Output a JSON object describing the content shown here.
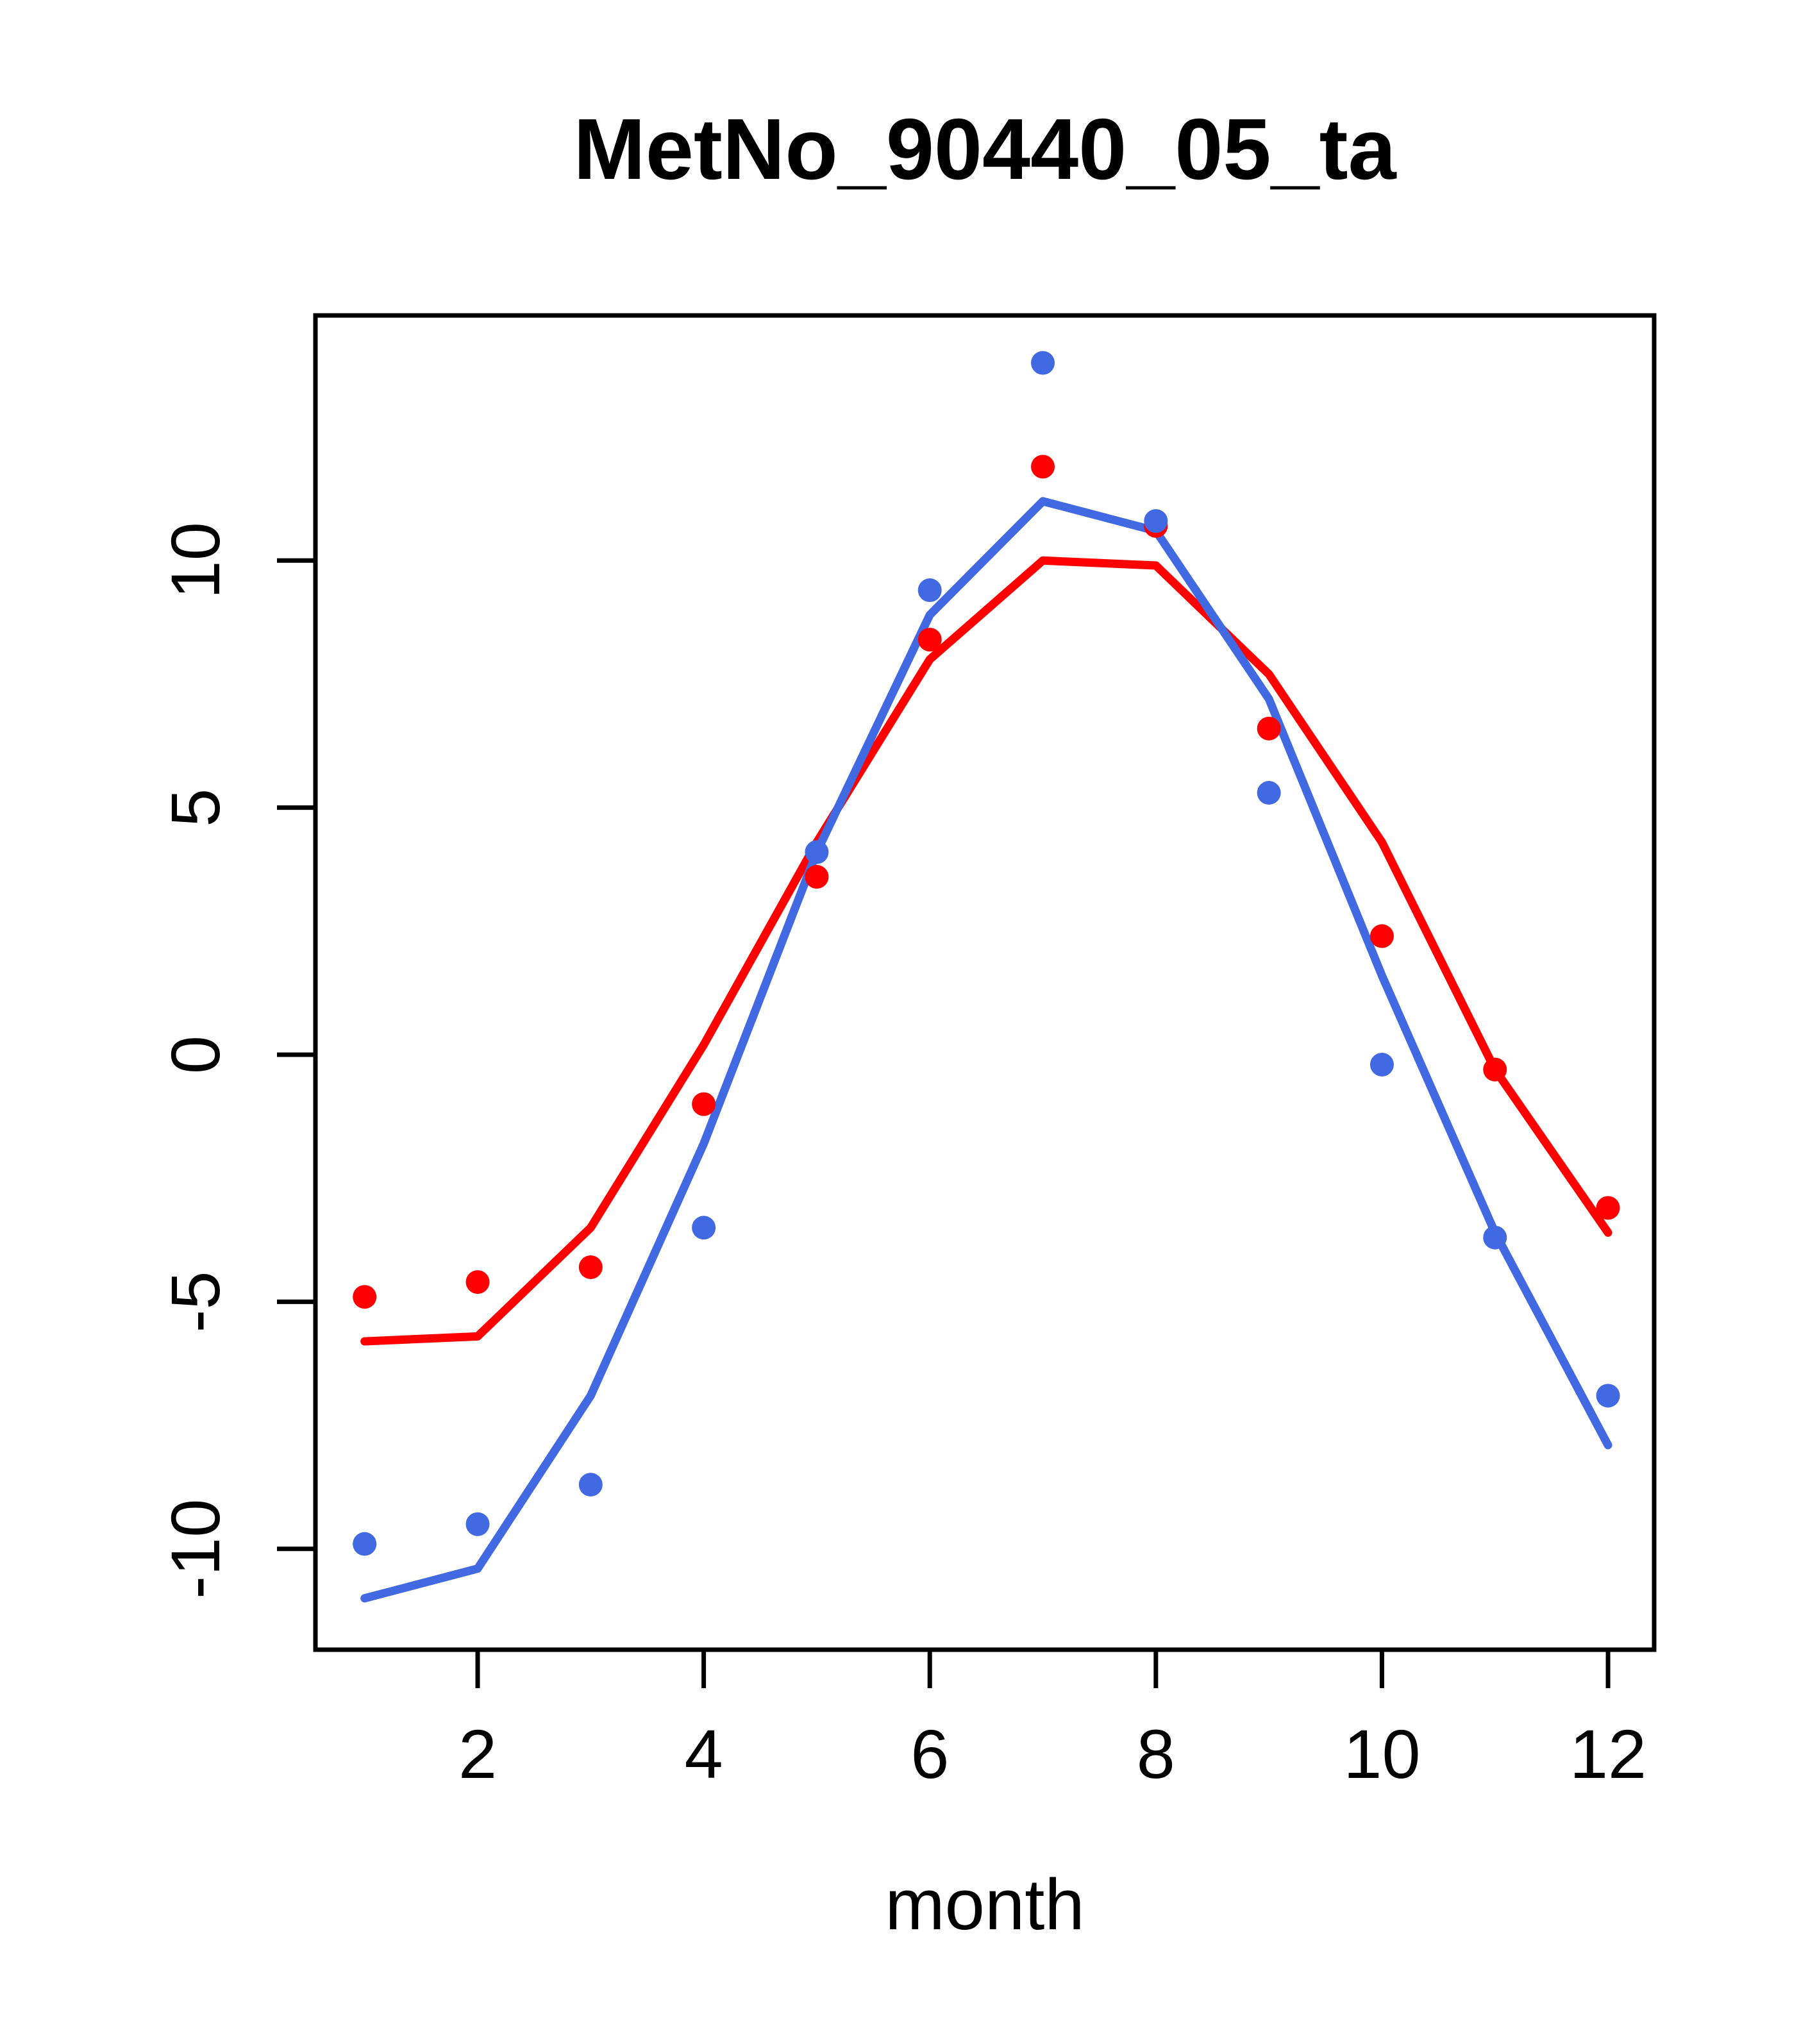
{
  "chart_data": {
    "type": "line",
    "title": "MetNo_90440_05_ta",
    "xlabel": "month",
    "ylabel": "",
    "grid": false,
    "legend": "none",
    "axis_color": "#000000",
    "background": "#ffffff",
    "x": [
      1,
      2,
      3,
      4,
      5,
      6,
      7,
      8,
      9,
      10,
      11,
      12
    ],
    "xticks": [
      2,
      4,
      6,
      8,
      10,
      12
    ],
    "yticks": [
      -10,
      -5,
      0,
      5,
      10
    ],
    "xlim": [
      0.565,
      12.408
    ],
    "ylim": [
      -12.04,
      14.96
    ],
    "series": [
      {
        "name": "red-line",
        "kind": "line",
        "color": "#FF0000",
        "values": [
          -5.8,
          -5.7,
          -3.5,
          0.2,
          4.3,
          8.0,
          10.0,
          9.9,
          7.7,
          4.3,
          -0.3,
          -3.6
        ]
      },
      {
        "name": "blue-line",
        "kind": "line",
        "color": "#4169E1",
        "values": [
          -11.0,
          -10.4,
          -6.9,
          -1.8,
          4.1,
          8.9,
          11.2,
          10.6,
          7.2,
          1.6,
          -3.6,
          -7.9
        ]
      },
      {
        "name": "red-points",
        "kind": "points",
        "color": "#FF0000",
        "values": [
          -4.9,
          -4.6,
          -4.3,
          -1.0,
          3.6,
          8.4,
          11.9,
          10.7,
          6.6,
          2.4,
          -0.3,
          -3.1
        ]
      },
      {
        "name": "blue-points",
        "kind": "points",
        "color": "#4169E1",
        "values": [
          -9.9,
          -9.5,
          -8.7,
          -3.5,
          4.1,
          9.4,
          14.0,
          10.8,
          5.3,
          -0.2,
          -3.7,
          -6.9
        ]
      }
    ]
  }
}
